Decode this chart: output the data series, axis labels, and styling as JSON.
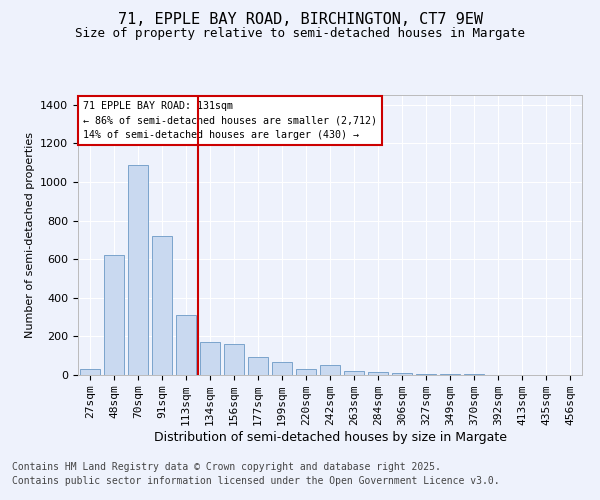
{
  "title1": "71, EPPLE BAY ROAD, BIRCHINGTON, CT7 9EW",
  "title2": "Size of property relative to semi-detached houses in Margate",
  "xlabel": "Distribution of semi-detached houses by size in Margate",
  "ylabel": "Number of semi-detached properties",
  "categories": [
    "27sqm",
    "48sqm",
    "70sqm",
    "91sqm",
    "113sqm",
    "134sqm",
    "156sqm",
    "177sqm",
    "199sqm",
    "220sqm",
    "242sqm",
    "263sqm",
    "284sqm",
    "306sqm",
    "327sqm",
    "349sqm",
    "370sqm",
    "392sqm",
    "413sqm",
    "435sqm",
    "456sqm"
  ],
  "values": [
    30,
    620,
    1090,
    720,
    310,
    170,
    160,
    95,
    65,
    30,
    50,
    22,
    18,
    8,
    5,
    4,
    4,
    2,
    2,
    2,
    2
  ],
  "bar_color": "#c9d9f0",
  "bar_edge_color": "#7aa3cc",
  "vline_color": "#cc0000",
  "annotation_text": "71 EPPLE BAY ROAD: 131sqm\n← 86% of semi-detached houses are smaller (2,712)\n14% of semi-detached houses are larger (430) →",
  "annotation_box_color": "#ffffff",
  "annotation_box_edge": "#cc0000",
  "footer1": "Contains HM Land Registry data © Crown copyright and database right 2025.",
  "footer2": "Contains public sector information licensed under the Open Government Licence v3.0.",
  "background_color": "#eef2fc",
  "ylim": [
    0,
    1450
  ],
  "title1_fontsize": 11,
  "title2_fontsize": 9,
  "xlabel_fontsize": 9,
  "ylabel_fontsize": 8,
  "tick_fontsize": 8,
  "footer_fontsize": 7
}
